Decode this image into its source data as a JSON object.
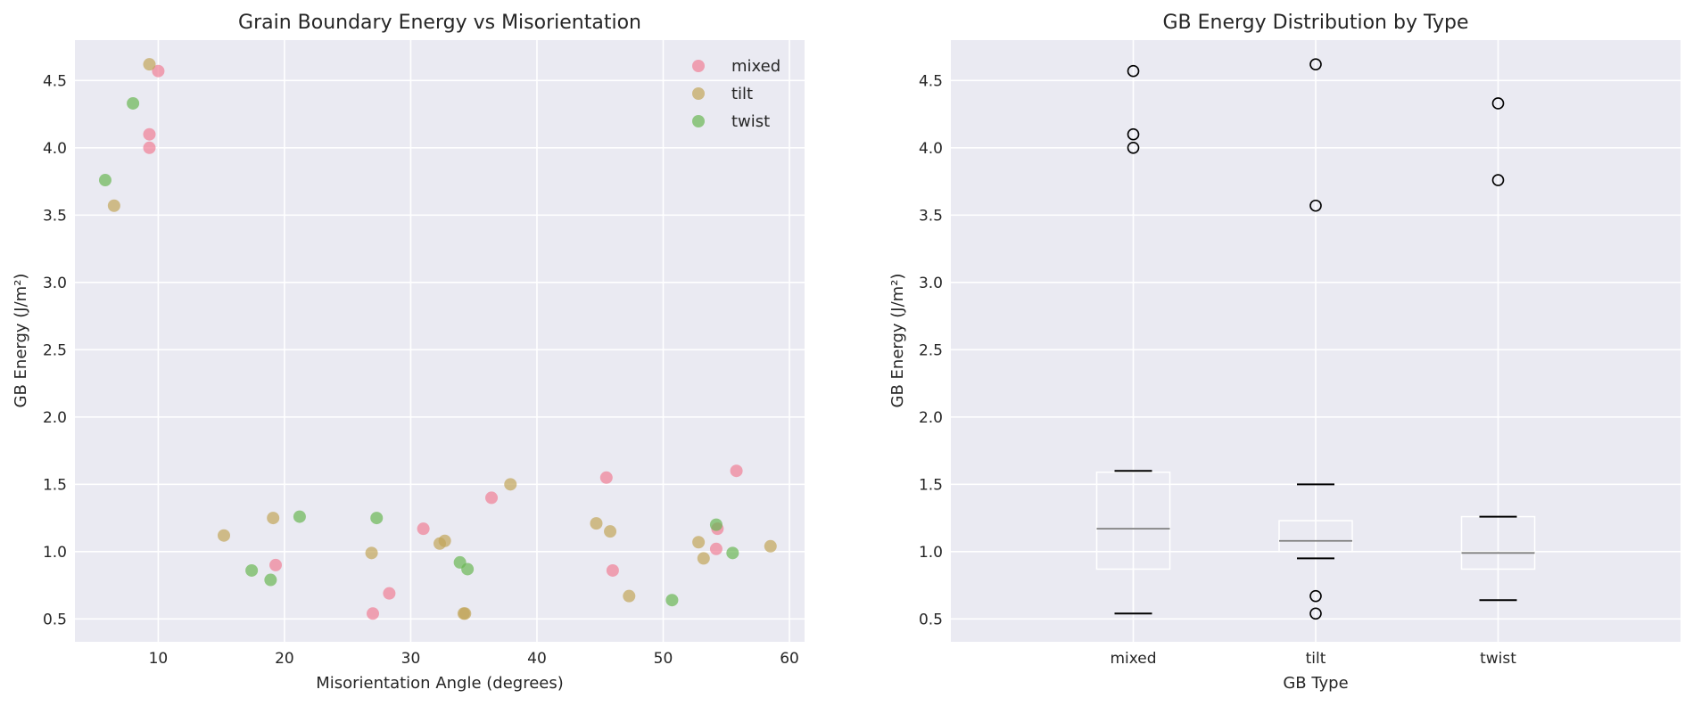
{
  "chart_data": [
    {
      "type": "scatter",
      "title": "Grain Boundary Energy vs Misorientation",
      "xlabel": "Misorientation Angle (degrees)",
      "ylabel": "GB Energy (J/m²)",
      "xlim": [
        3.4,
        61.2
      ],
      "ylim": [
        0.33,
        4.8
      ],
      "xticks": [
        "10",
        "20",
        "30",
        "40",
        "50",
        "60"
      ],
      "yticks": [
        "0.5",
        "1.0",
        "1.5",
        "2.0",
        "2.5",
        "3.0",
        "3.5",
        "4.0",
        "4.5"
      ],
      "grid": true,
      "legend_position": "top-right",
      "series": [
        {
          "name": "mixed",
          "color": "#f07f96",
          "points": [
            [
              10.0,
              4.57
            ],
            [
              9.3,
              4.1
            ],
            [
              9.3,
              4.0
            ],
            [
              19.3,
              0.9
            ],
            [
              27.0,
              0.54
            ],
            [
              28.3,
              0.69
            ],
            [
              31.0,
              1.17
            ],
            [
              36.4,
              1.4
            ],
            [
              45.5,
              1.55
            ],
            [
              46.0,
              0.86
            ],
            [
              54.2,
              1.02
            ],
            [
              54.3,
              1.17
            ],
            [
              55.8,
              1.6
            ]
          ]
        },
        {
          "name": "tilt",
          "color": "#c2a55a",
          "points": [
            [
              9.3,
              4.62
            ],
            [
              6.5,
              3.57
            ],
            [
              15.2,
              1.12
            ],
            [
              19.1,
              1.25
            ],
            [
              26.9,
              0.99
            ],
            [
              32.3,
              1.06
            ],
            [
              32.7,
              1.08
            ],
            [
              34.2,
              0.54
            ],
            [
              34.3,
              0.54
            ],
            [
              37.9,
              1.5
            ],
            [
              44.7,
              1.21
            ],
            [
              45.8,
              1.15
            ],
            [
              47.3,
              0.67
            ],
            [
              52.8,
              1.07
            ],
            [
              53.2,
              0.95
            ],
            [
              58.5,
              1.04
            ]
          ]
        },
        {
          "name": "twist",
          "color": "#6ab754",
          "points": [
            [
              8.0,
              4.33
            ],
            [
              5.8,
              3.76
            ],
            [
              17.4,
              0.86
            ],
            [
              18.9,
              0.79
            ],
            [
              21.2,
              1.26
            ],
            [
              27.3,
              1.25
            ],
            [
              33.9,
              0.92
            ],
            [
              34.5,
              0.87
            ],
            [
              50.7,
              0.64
            ],
            [
              54.2,
              1.2
            ],
            [
              55.5,
              0.99
            ]
          ]
        }
      ]
    },
    {
      "type": "box",
      "title": "GB Energy Distribution by Type",
      "xlabel": "GB Type",
      "ylabel": "GB Energy (J/m²)",
      "ylim": [
        0.33,
        4.8
      ],
      "categories": [
        "mixed",
        "tilt",
        "twist"
      ],
      "yticks": [
        "0.5",
        "1.0",
        "1.5",
        "2.0",
        "2.5",
        "3.0",
        "3.5",
        "4.0",
        "4.5"
      ],
      "grid": true,
      "boxes": [
        {
          "whisker_low": 0.54,
          "q1": 0.87,
          "median": 1.17,
          "q3": 1.59,
          "whisker_high": 1.6,
          "outliers": [
            4.57,
            4.1,
            4.0
          ]
        },
        {
          "whisker_low": 0.95,
          "q1": 1.0,
          "median": 1.08,
          "q3": 1.23,
          "whisker_high": 1.5,
          "outliers": [
            4.62,
            3.57,
            0.67,
            0.54
          ]
        },
        {
          "whisker_low": 0.64,
          "q1": 0.87,
          "median": 0.99,
          "q3": 1.26,
          "whisker_high": 1.26,
          "outliers": [
            4.33,
            3.76
          ]
        }
      ]
    }
  ]
}
